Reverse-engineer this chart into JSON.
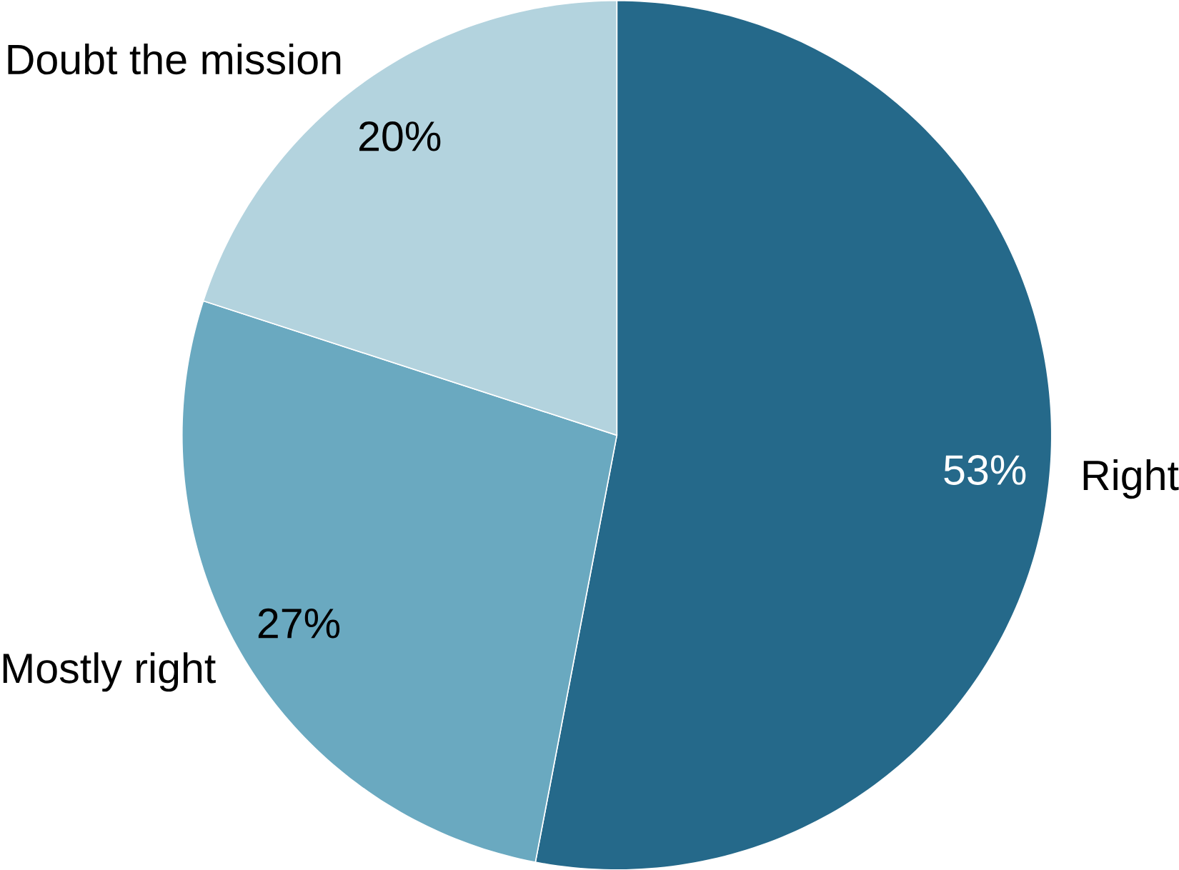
{
  "chart_data": {
    "type": "pie",
    "categories": [
      "Right",
      "Mostly right",
      "Doubt the mission"
    ],
    "values": [
      53,
      27,
      20
    ],
    "colors": [
      "#25698a",
      "#6aa9c0",
      "#b3d3de"
    ],
    "value_labels": [
      "53%",
      "27%",
      "20%"
    ]
  }
}
